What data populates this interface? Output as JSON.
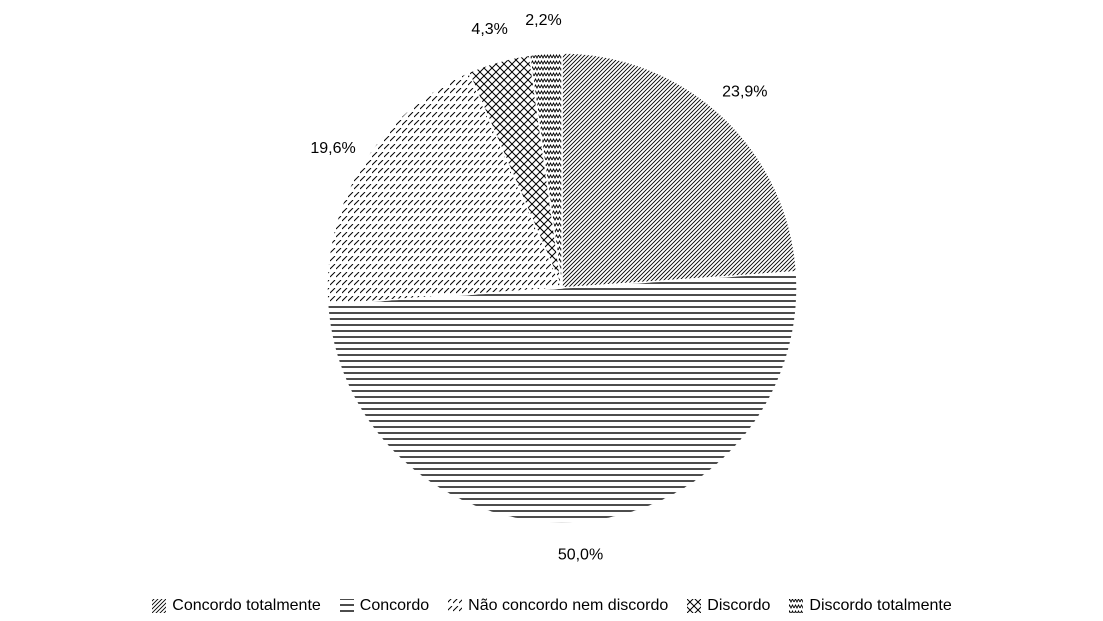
{
  "chart_data": {
    "type": "pie",
    "title": "",
    "categories": [
      "Concordo totalmente",
      "Concordo",
      "Não concordo nem discordo",
      "Discordo",
      "Discordo totalmente"
    ],
    "values": [
      23.9,
      50.0,
      19.6,
      4.3,
      2.2
    ],
    "labels": [
      "23,9%",
      "50,0%",
      "19,6%",
      "4,3%",
      "2,2%"
    ],
    "patterns": [
      "diagonal-fine",
      "horizontal",
      "diagonal-dashed",
      "crosshatch",
      "zigzag"
    ],
    "color": "#000000",
    "start_angle": "12 o'clock",
    "direction": "clockwise",
    "legend_position": "bottom"
  }
}
